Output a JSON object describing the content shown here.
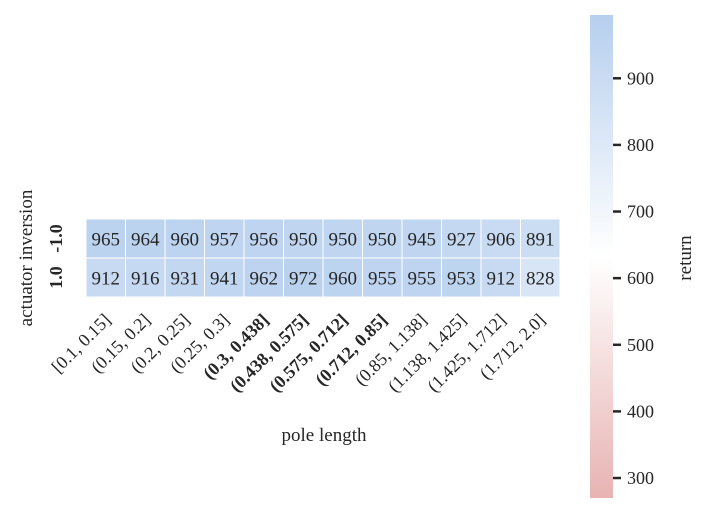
{
  "chart_data": {
    "type": "heatmap",
    "xlabel": "pole length",
    "ylabel": "actuator inversion",
    "x_categories": [
      "[0.1, 0.15]",
      "(0.15, 0.2]",
      "(0.2, 0.25]",
      "(0.25, 0.3]",
      "(0.3, 0.438]",
      "(0.438, 0.575]",
      "(0.575, 0.712]",
      "(0.712, 0.85]",
      "(0.85, 1.138]",
      "(1.138, 1.425]",
      "(1.425, 1.712]",
      "(1.712, 2.0]"
    ],
    "x_bold": [
      false,
      false,
      false,
      false,
      true,
      true,
      true,
      true,
      false,
      false,
      false,
      false
    ],
    "y_categories": [
      "-1.0",
      "1.0"
    ],
    "y_bold": [
      true,
      true
    ],
    "values": [
      [
        965,
        964,
        960,
        957,
        956,
        950,
        950,
        950,
        945,
        927,
        906,
        891
      ],
      [
        912,
        916,
        931,
        941,
        962,
        972,
        960,
        955,
        955,
        953,
        912,
        828
      ]
    ],
    "colorbar": {
      "label": "return",
      "vmin": 270,
      "vmax": 995,
      "ticks": [
        300,
        400,
        500,
        600,
        700,
        800,
        900
      ],
      "colors": {
        "low": "#e8b3b3",
        "mid": "#ffffff",
        "high": "#b6cfee"
      }
    }
  }
}
